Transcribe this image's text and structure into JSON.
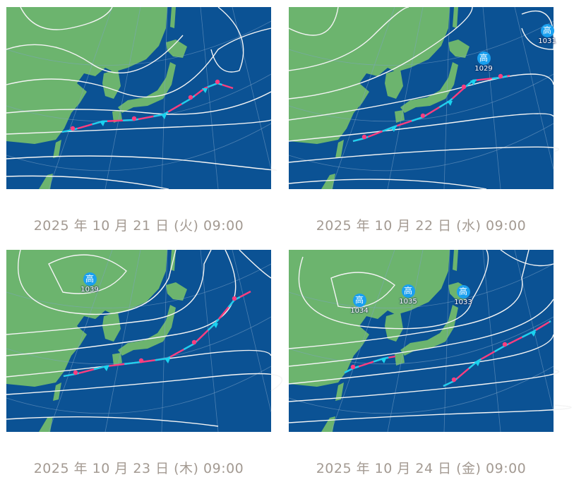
{
  "colors": {
    "ocean": "#0b5294",
    "land": "#6cb46e",
    "isobar": "#f4f4f4",
    "warm_front": "#ff3d7f",
    "cold_front": "#19d3f0",
    "high": "#1aa0ef",
    "caption": "#a39a92"
  },
  "maps": [
    {
      "caption": "2025 年 10 月 21 日 (火) 09:00",
      "highs": []
    },
    {
      "caption": "2025 年 10 月 22 日 (水) 09:00",
      "highs": [
        {
          "symbol": "高",
          "pressure": "1029"
        },
        {
          "symbol": "高",
          "pressure": "1031"
        }
      ]
    },
    {
      "caption": "2025 年 10 月 23 日 (木) 09:00",
      "highs": [
        {
          "symbol": "高",
          "pressure": "1039"
        }
      ]
    },
    {
      "caption": "2025 年 10 月 24 日 (金) 09:00",
      "highs": [
        {
          "symbol": "高",
          "pressure": "1034"
        },
        {
          "symbol": "高",
          "pressure": "1035"
        },
        {
          "symbol": "高",
          "pressure": "1033"
        }
      ]
    }
  ]
}
